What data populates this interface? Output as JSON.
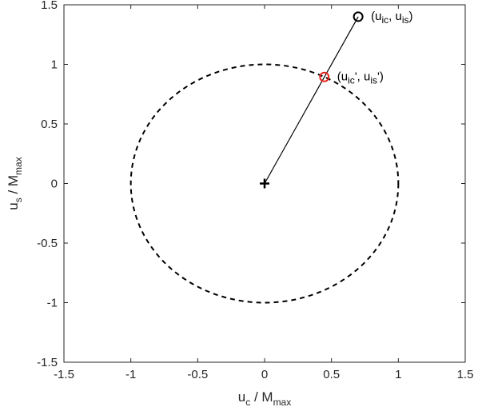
{
  "chart_data": {
    "type": "scatter",
    "title": "",
    "xlabel": {
      "main": "u",
      "sub1": "c",
      "mid": " / M",
      "sub2": "max"
    },
    "ylabel": {
      "main": "u",
      "sub1": "s",
      "mid": " / M",
      "sub2": "max"
    },
    "xlim": [
      -1.5,
      1.5
    ],
    "ylim": [
      -1.5,
      1.5
    ],
    "xticks": [
      -1.5,
      -1,
      -0.5,
      0,
      0.5,
      1,
      1.5
    ],
    "xtick_labels": [
      "-1.5",
      "-1",
      "-0.5",
      "0",
      "0.5",
      "1",
      "1.5"
    ],
    "yticks": [
      -1.5,
      -1,
      -0.5,
      0,
      0.5,
      1,
      1.5
    ],
    "ytick_labels": [
      "-1.5",
      "-1",
      "-0.5",
      "0",
      "0.5",
      "1",
      "1.5"
    ],
    "grid": false,
    "circle": {
      "center": [
        0,
        0
      ],
      "radius": 1,
      "style": "dashed",
      "color": "#000000"
    },
    "segment": {
      "from": [
        0,
        0
      ],
      "to": [
        0.7,
        1.4
      ],
      "color": "#000000"
    },
    "points": [
      {
        "x": 0,
        "y": 0,
        "marker": "plus",
        "color": "#000000"
      },
      {
        "x": 0.7,
        "y": 1.4,
        "marker": "circle",
        "color": "#000000",
        "annotation": {
          "parts": [
            "(u",
            "ic",
            ", u",
            "is",
            ")"
          ]
        }
      },
      {
        "x": 0.447,
        "y": 0.894,
        "marker": "circle",
        "color": "#e8251c",
        "annotation": {
          "parts": [
            "(u",
            "ic",
            "', u",
            "is",
            "')"
          ]
        }
      }
    ]
  }
}
